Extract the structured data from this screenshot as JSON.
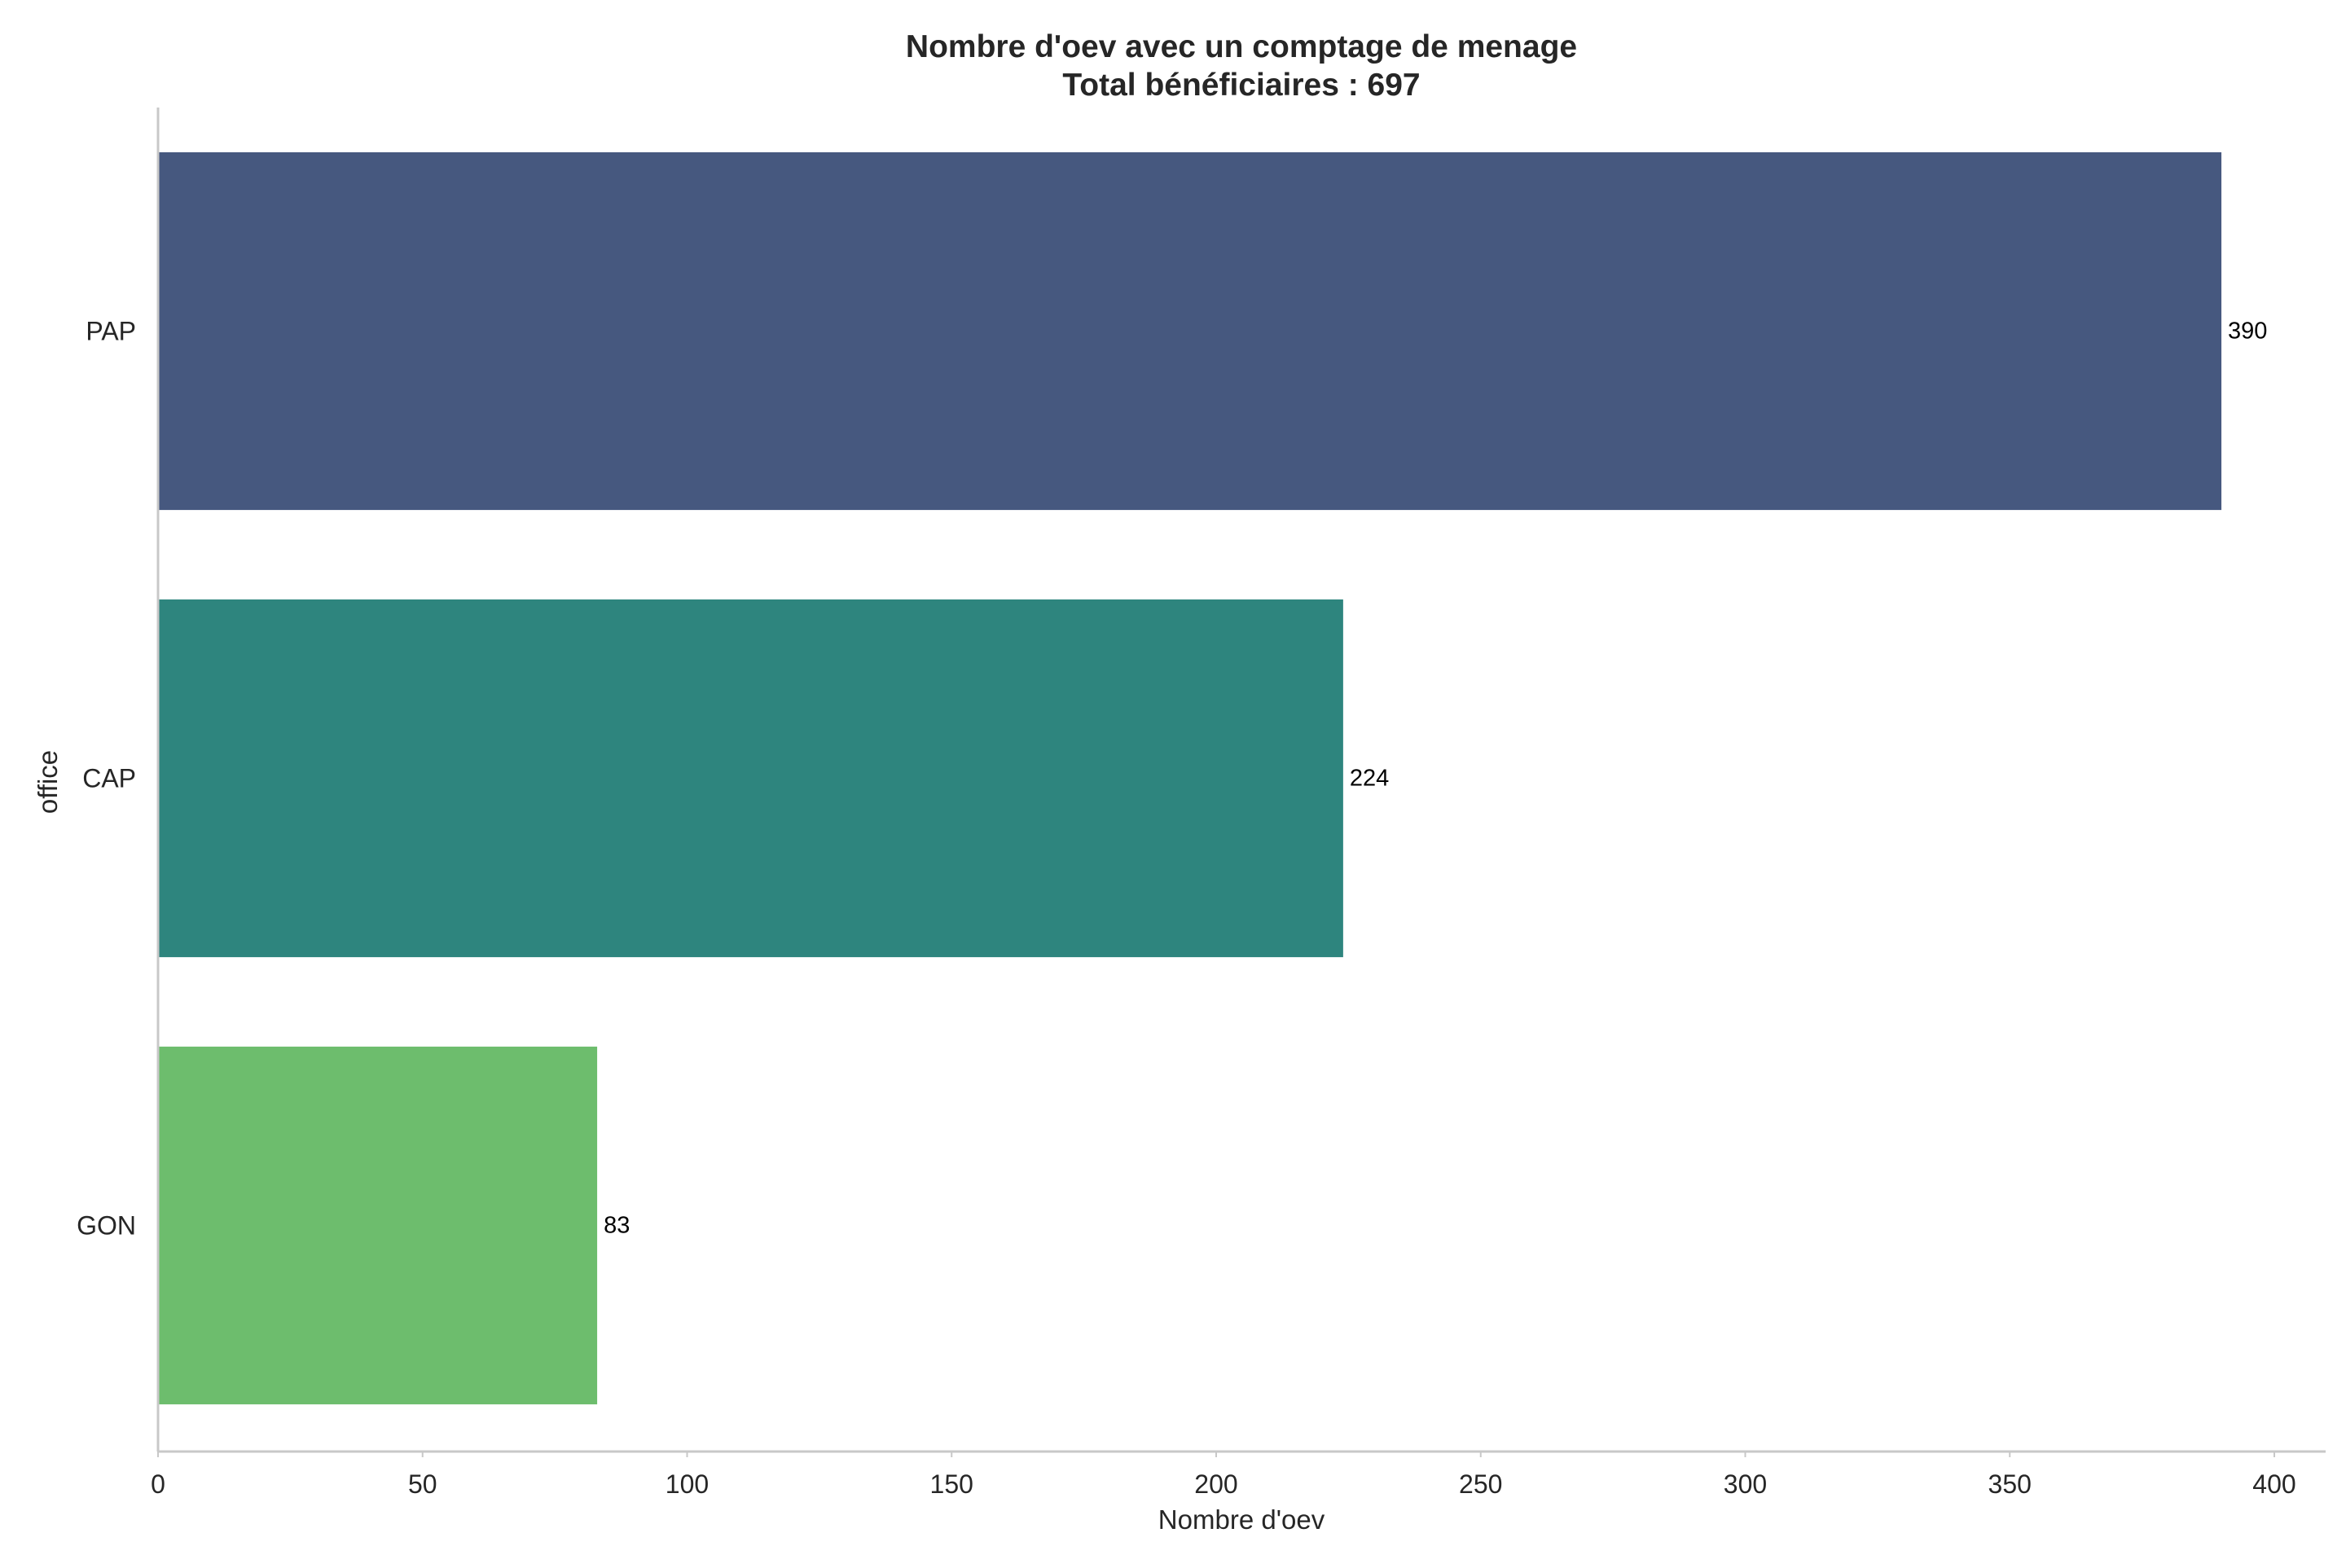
{
  "chart_data": {
    "type": "bar",
    "orientation": "horizontal",
    "title_line1": "Nombre d'oev avec un comptage de menage",
    "title_line2": "Total bénéficiaires : 697",
    "xlabel": "Nombre d'oev",
    "ylabel": "office",
    "categories": [
      "PAP",
      "CAP",
      "GON"
    ],
    "values": [
      390,
      224,
      83
    ],
    "value_labels": [
      "390",
      "224",
      "83"
    ],
    "colors": [
      "#46587f",
      "#2e857e",
      "#6dbd6d"
    ],
    "xlim": [
      0,
      410
    ],
    "xticks": [
      0,
      50,
      100,
      150,
      200,
      250,
      300,
      350,
      400
    ],
    "xtick_labels": [
      "0",
      "50",
      "100",
      "150",
      "200",
      "250",
      "300",
      "350",
      "400"
    ],
    "grid": false,
    "legend": "none"
  }
}
